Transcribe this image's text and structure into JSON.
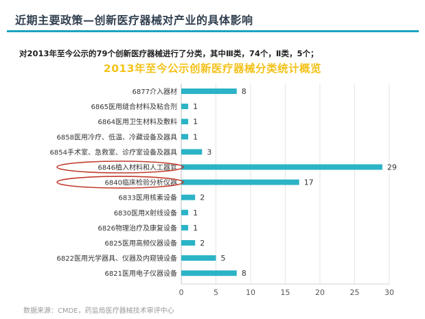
{
  "header": {
    "title": "近期主要政策—创新医疗器械对产业的具体影响",
    "intro": "对2013年至今公示的79个创新医疗器械进行了分类，其中Ⅲ类，74个，Ⅱ类，5个；"
  },
  "colors": {
    "bar": "#2bb3c6",
    "title_rule": "#1aa2c2",
    "chart_title": "#f4c21a",
    "highlight": "#c0392b",
    "grid": "#e3e3e3"
  },
  "chart_data": {
    "type": "bar",
    "orientation": "horizontal",
    "title": "2013年至今公示创新医疗器械分类统计概览",
    "categories": [
      "6877介入器材",
      "6865医用缝合材料及粘合剂",
      "6864医用卫生材料及敷料",
      "6858医用冷疗、低温、冷藏设备及器具",
      "6854手术室、急救室、诊疗室设备及器具",
      "6846植入材料和人工器官",
      "6840临床检验分析仪器",
      "6833医用核素设备",
      "6830医用X射线设备",
      "6826物理治疗及康复设备",
      "6825医用高频仪器设备",
      "6822医用光学器具、仪器及内窥镜设备",
      "6821医用电子仪器设备"
    ],
    "values": [
      8,
      1,
      1,
      1,
      3,
      29,
      17,
      2,
      1,
      1,
      2,
      5,
      8
    ],
    "highlighted": [
      "6846植入材料和人工器官",
      "6840临床检验分析仪器"
    ],
    "xlim": [
      0,
      30
    ],
    "xticks": [
      0,
      5,
      10,
      15,
      20,
      25,
      30
    ],
    "grid": "vertical",
    "data_labels": true
  },
  "footer": {
    "source": "数据来源：CMDE，药监局医疗器械技术审评中心"
  }
}
